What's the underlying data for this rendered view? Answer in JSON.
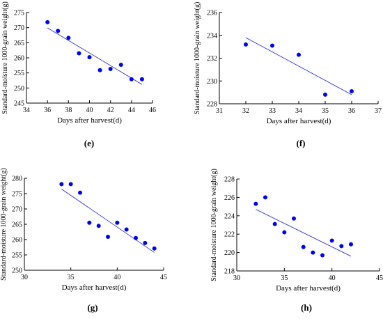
{
  "chart_data": [
    {
      "type": "scatter",
      "panel_label": "(e)",
      "xlabel": "Days after harvest(d)",
      "ylabel": "Standard-moisture 1000-grain weight(g)",
      "xlim": [
        34,
        46
      ],
      "ylim": [
        245,
        275
      ],
      "xticks": [
        34,
        36,
        38,
        40,
        42,
        44,
        46
      ],
      "yticks": [
        245,
        250,
        255,
        260,
        265,
        270,
        275
      ],
      "points": [
        [
          36,
          271.8
        ],
        [
          37,
          268.9
        ],
        [
          38,
          266.6
        ],
        [
          39,
          261.5
        ],
        [
          40,
          260.2
        ],
        [
          41,
          255.9
        ],
        [
          42,
          256.3
        ],
        [
          43,
          257.7
        ],
        [
          44,
          252.9
        ],
        [
          45,
          252.9
        ]
      ],
      "fit_line": [
        [
          36,
          269.9
        ],
        [
          45,
          251.2
        ]
      ],
      "point_color": "#0000ff",
      "line_color": "#4444dd"
    },
    {
      "type": "scatter",
      "panel_label": "(f)",
      "xlabel": "Days after harvest(d)",
      "ylabel": "Standard-moisture 1000-grain weight(g)",
      "xlim": [
        31,
        37
      ],
      "ylim": [
        228,
        236
      ],
      "xticks": [
        31,
        32,
        33,
        34,
        35,
        36,
        37
      ],
      "yticks": [
        228,
        230,
        232,
        234,
        236
      ],
      "points": [
        [
          32,
          233.2
        ],
        [
          33,
          233.1
        ],
        [
          34,
          232.3
        ],
        [
          35,
          228.8
        ],
        [
          36,
          229.1
        ]
      ],
      "fit_line": [
        [
          32,
          233.8
        ],
        [
          36,
          228.8
        ]
      ],
      "point_color": "#0000ff",
      "line_color": "#4444dd"
    },
    {
      "type": "scatter",
      "panel_label": "(g)",
      "xlabel": "Days after harvest(d)",
      "ylabel": "Standard-moisture 1000-grain weight(g)",
      "xlim": [
        30,
        45
      ],
      "ylim": [
        250,
        280
      ],
      "xticks": [
        30,
        35,
        40,
        45
      ],
      "yticks": [
        250,
        255,
        260,
        265,
        270,
        275,
        280
      ],
      "points": [
        [
          34,
          278.1
        ],
        [
          35,
          278.1
        ],
        [
          36,
          275.3
        ],
        [
          37,
          265.5
        ],
        [
          38,
          264.5
        ],
        [
          39,
          260.9
        ],
        [
          40,
          265.5
        ],
        [
          41,
          263.3
        ],
        [
          42,
          260.5
        ],
        [
          43,
          258.9
        ],
        [
          44,
          257.1
        ]
      ],
      "fit_line": [
        [
          34,
          276.5
        ],
        [
          44,
          255.8
        ]
      ],
      "point_color": "#0000ff",
      "line_color": "#4444dd"
    },
    {
      "type": "scatter",
      "panel_label": "(h)",
      "xlabel": "Days after harvest(d)",
      "ylabel": "Standard-moisture 1000-grain weight(g)",
      "xlim": [
        30,
        45
      ],
      "ylim": [
        218,
        228
      ],
      "xticks": [
        30,
        35,
        40,
        45
      ],
      "yticks": [
        218,
        220,
        222,
        224,
        226,
        228
      ],
      "points": [
        [
          32,
          225.3
        ],
        [
          33,
          226.0
        ],
        [
          34,
          223.1
        ],
        [
          35,
          222.2
        ],
        [
          36,
          223.7
        ],
        [
          37,
          220.6
        ],
        [
          38,
          220.0
        ],
        [
          39,
          219.7
        ],
        [
          40,
          221.3
        ],
        [
          41,
          220.7
        ],
        [
          42,
          220.9
        ]
      ],
      "fit_line": [
        [
          32,
          224.7
        ],
        [
          42,
          219.6
        ]
      ],
      "point_color": "#0000ff",
      "line_color": "#4444dd"
    }
  ]
}
